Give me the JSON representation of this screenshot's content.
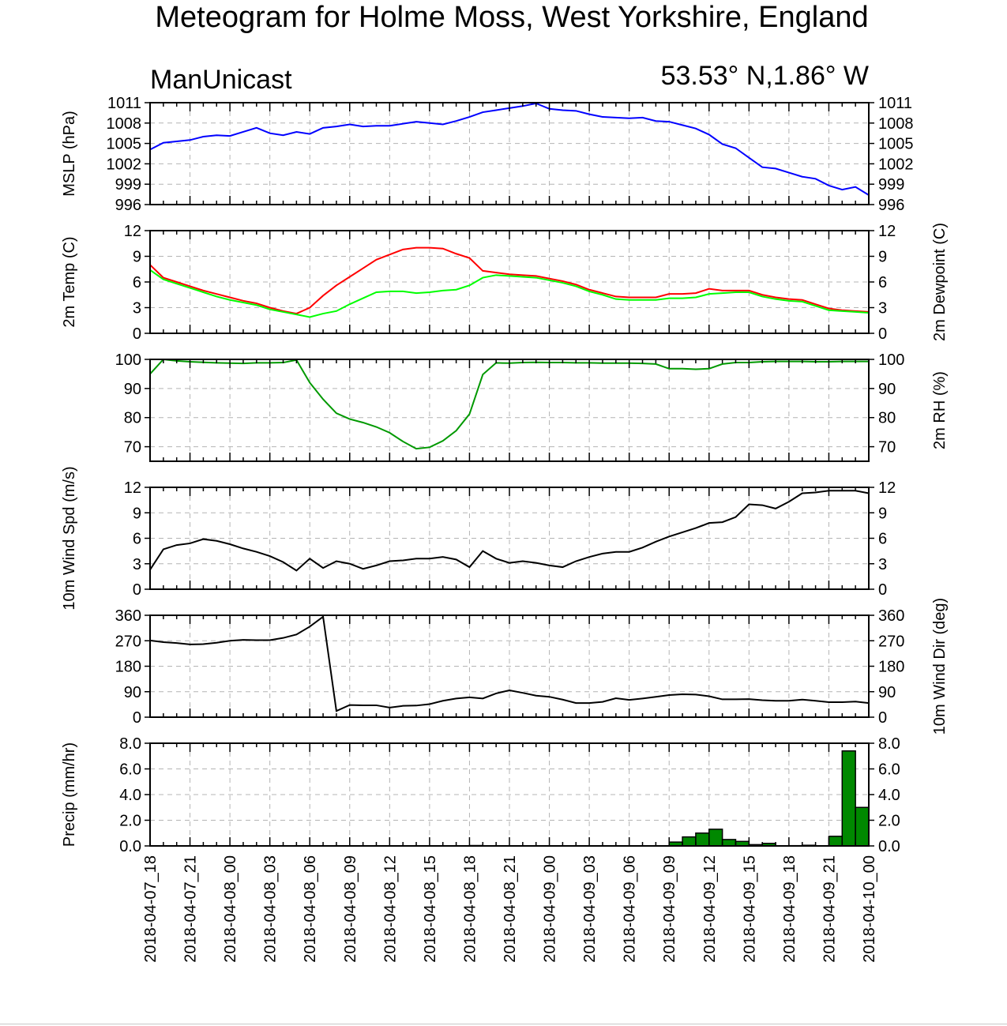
{
  "title": "Meteogram for Holme Moss, West Yorkshire, England",
  "model_label": "ManUnicast",
  "location_label": "53.53° N,1.86° W",
  "chart_data": [
    {
      "type": "line",
      "ylabel": "MSLP (hPa)",
      "ylim": [
        996,
        1011
      ],
      "ticks": [
        996,
        999,
        1002,
        1005,
        1008,
        1011
      ],
      "tick_labels": [
        "996",
        "999",
        "1002",
        "1005",
        "1008",
        "1011"
      ],
      "grid": true,
      "series": [
        {
          "color": "#0000ff",
          "values": [
            1004.1,
            1005.1,
            1005.3,
            1005.5,
            1006.0,
            1006.2,
            1006.1,
            1006.7,
            1007.3,
            1006.5,
            1006.2,
            1006.7,
            1006.4,
            1007.3,
            1007.5,
            1007.8,
            1007.5,
            1007.6,
            1007.6,
            1007.9,
            1008.2,
            1008.0,
            1007.8,
            1008.3,
            1008.9,
            1009.6,
            1009.9,
            1010.2,
            1010.5,
            1010.9,
            1010.1,
            1009.9,
            1009.8,
            1009.3,
            1008.9,
            1008.8,
            1008.7,
            1008.8,
            1008.3,
            1008.2,
            1007.7,
            1007.2,
            1006.3,
            1004.9,
            1004.3,
            1002.9,
            1001.5,
            1001.3,
            1000.7,
            1000.1,
            999.8,
            998.8,
            998.2,
            998.6,
            997.4
          ]
        }
      ]
    },
    {
      "type": "line",
      "ylabel": "2m Temp (C)",
      "ylabel_right": "2m Dewpoint (C)",
      "ylim": [
        0,
        12
      ],
      "ticks": [
        0,
        3,
        6,
        9,
        12
      ],
      "tick_labels": [
        "0",
        "3",
        "6",
        "9",
        "12"
      ],
      "grid": true,
      "series": [
        {
          "color": "#ff0000",
          "values": [
            8.0,
            6.5,
            6.0,
            5.5,
            5.0,
            4.6,
            4.2,
            3.8,
            3.5,
            3.0,
            2.6,
            2.3,
            3.0,
            4.4,
            5.6,
            6.6,
            7.6,
            8.6,
            9.2,
            9.8,
            10.0,
            10.0,
            9.9,
            9.3,
            8.8,
            7.3,
            7.1,
            6.9,
            6.8,
            6.7,
            6.4,
            6.1,
            5.7,
            5.1,
            4.7,
            4.3,
            4.2,
            4.2,
            4.2,
            4.6,
            4.6,
            4.7,
            5.2,
            5.0,
            5.0,
            5.0,
            4.5,
            4.2,
            4.0,
            3.9,
            3.4,
            2.9,
            2.7,
            2.6,
            2.5
          ]
        },
        {
          "color": "#00ff00",
          "values": [
            7.4,
            6.3,
            5.8,
            5.3,
            4.8,
            4.3,
            3.9,
            3.6,
            3.3,
            2.8,
            2.5,
            2.2,
            1.9,
            2.3,
            2.6,
            3.4,
            4.1,
            4.8,
            4.9,
            4.9,
            4.7,
            4.8,
            5.0,
            5.1,
            5.6,
            6.5,
            6.8,
            6.7,
            6.6,
            6.5,
            6.2,
            5.9,
            5.5,
            4.9,
            4.5,
            4.0,
            3.9,
            3.9,
            3.9,
            4.1,
            4.1,
            4.2,
            4.6,
            4.7,
            4.8,
            4.8,
            4.3,
            4.0,
            3.8,
            3.7,
            3.2,
            2.7,
            2.6,
            2.5,
            2.4
          ]
        }
      ]
    },
    {
      "type": "line",
      "ylabel_right": "2m RH (%)",
      "ylim": [
        65,
        100
      ],
      "ticks": [
        70,
        80,
        90,
        100
      ],
      "tick_labels": [
        "70",
        "80",
        "90",
        "100"
      ],
      "grid": true,
      "series": [
        {
          "color": "#009900",
          "values": [
            95.0,
            100.0,
            99.5,
            99.2,
            99.0,
            98.8,
            98.7,
            98.6,
            98.8,
            98.8,
            98.9,
            99.8,
            92.0,
            86.3,
            81.5,
            79.5,
            78.3,
            76.8,
            74.8,
            71.8,
            69.3,
            69.8,
            72.0,
            75.5,
            81.2,
            94.8,
            98.8,
            98.7,
            98.9,
            99.0,
            98.9,
            98.9,
            98.8,
            98.8,
            98.7,
            98.7,
            98.7,
            98.6,
            98.4,
            96.8,
            96.8,
            96.6,
            96.8,
            98.4,
            98.9,
            98.9,
            99.2,
            99.3,
            99.3,
            99.3,
            99.2,
            99.2,
            99.3,
            99.3,
            99.3
          ]
        }
      ]
    },
    {
      "type": "line",
      "ylabel": "10m Wind Spd (m/s)",
      "ylim": [
        0,
        12
      ],
      "ticks": [
        0,
        3,
        6,
        9,
        12
      ],
      "tick_labels": [
        "0",
        "3",
        "6",
        "9",
        "12"
      ],
      "grid": true,
      "series": [
        {
          "color": "#000000",
          "values": [
            2.3,
            4.7,
            5.2,
            5.4,
            5.9,
            5.7,
            5.3,
            4.8,
            4.4,
            3.9,
            3.2,
            2.2,
            3.6,
            2.5,
            3.3,
            3.0,
            2.4,
            2.8,
            3.3,
            3.4,
            3.6,
            3.6,
            3.8,
            3.5,
            2.6,
            4.5,
            3.6,
            3.1,
            3.3,
            3.1,
            2.8,
            2.6,
            3.3,
            3.8,
            4.2,
            4.4,
            4.4,
            4.9,
            5.6,
            6.2,
            6.7,
            7.2,
            7.8,
            7.9,
            8.5,
            10.0,
            9.9,
            9.5,
            10.3,
            11.3,
            11.4,
            11.6,
            11.6,
            11.6,
            11.3
          ]
        }
      ]
    },
    {
      "type": "line",
      "ylabel_right": "10m Wind Dir (deg)",
      "ylim": [
        0,
        360
      ],
      "ticks": [
        0,
        90,
        180,
        270,
        360
      ],
      "tick_labels": [
        "0",
        "90",
        "180",
        "270",
        "360"
      ],
      "grid": true,
      "series": [
        {
          "color": "#000000",
          "values": [
            271,
            265,
            262,
            257,
            258,
            263,
            270,
            273,
            272,
            272,
            280,
            292,
            320,
            355,
            22,
            43,
            42,
            42,
            34,
            40,
            41,
            46,
            58,
            66,
            70,
            66,
            84,
            95,
            86,
            76,
            72,
            62,
            50,
            50,
            54,
            67,
            61,
            66,
            72,
            78,
            81,
            80,
            74,
            63,
            63,
            64,
            60,
            58,
            58,
            62,
            58,
            53,
            53,
            55,
            50
          ]
        }
      ]
    },
    {
      "type": "bar",
      "ylabel": "Precip (mm/hr)",
      "ylim": [
        0,
        8
      ],
      "ticks": [
        0,
        2,
        4,
        6,
        8
      ],
      "tick_labels": [
        "0.0",
        "2.0",
        "4.0",
        "6.0",
        "8.0"
      ],
      "grid": true,
      "bar_color": "#008800",
      "values": [
        0,
        0,
        0,
        0,
        0,
        0,
        0,
        0,
        0,
        0,
        0,
        0,
        0,
        0,
        0,
        0,
        0,
        0,
        0,
        0,
        0,
        0,
        0,
        0,
        0.03,
        0,
        0,
        0,
        0,
        0,
        0,
        0,
        0,
        0,
        0,
        0,
        0,
        0,
        0,
        0.3,
        0.7,
        1.0,
        1.3,
        0.5,
        0.35,
        0.1,
        0.2,
        0,
        0.02,
        0.05,
        0,
        0.75,
        7.4,
        3.0
      ]
    }
  ],
  "x_axis": {
    "tick_labels": [
      "2018-04-07_18",
      "2018-04-07_21",
      "2018-04-08_00",
      "2018-04-08_03",
      "2018-04-08_06",
      "2018-04-08_09",
      "2018-04-08_12",
      "2018-04-08_15",
      "2018-04-08_18",
      "2018-04-08_21",
      "2018-04-09_00",
      "2018-04-09_03",
      "2018-04-09_06",
      "2018-04-09_09",
      "2018-04-09_12",
      "2018-04-09_15",
      "2018-04-09_18",
      "2018-04-09_21",
      "2018-04-10_00"
    ]
  }
}
